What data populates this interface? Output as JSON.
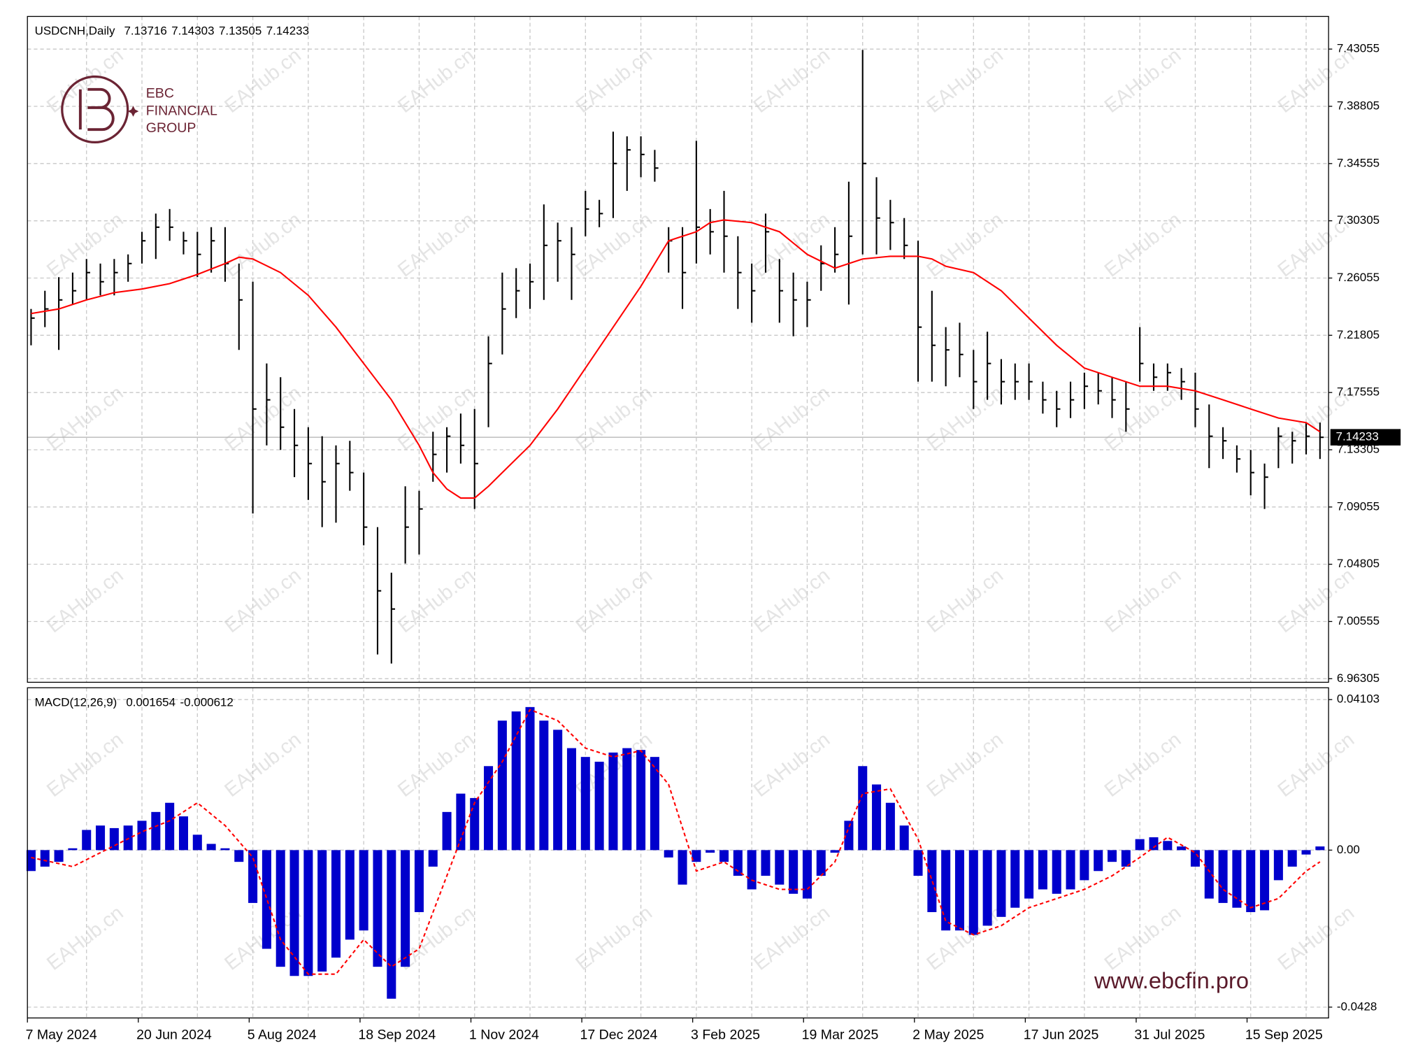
{
  "chart_data": [
    {
      "type": "ohlc",
      "title": "USDCNH,Daily",
      "header_values": [
        7.13716,
        7.14303,
        7.13505,
        7.14233
      ],
      "categories": [
        "7 May 2024",
        null,
        null,
        null,
        null,
        null,
        null,
        null,
        "20 Jun 2024",
        null,
        null,
        null,
        null,
        null,
        null,
        null,
        "5 Aug 2024",
        null,
        null,
        null,
        null,
        null,
        null,
        null,
        "18 Sep 2024",
        null,
        null,
        null,
        null,
        null,
        null,
        null,
        "1 Nov 2024",
        null,
        null,
        null,
        null,
        null,
        null,
        null,
        "17 Dec 2024",
        null,
        null,
        null,
        null,
        null,
        null,
        null,
        "3 Feb 2025",
        null,
        null,
        null,
        null,
        null,
        null,
        null,
        "19 Mar 2025",
        null,
        null,
        null,
        null,
        null,
        null,
        null,
        "2 May 2025",
        null,
        null,
        null,
        null,
        null,
        null,
        null,
        "17 Jun 2025",
        null,
        null,
        null,
        null,
        null,
        null,
        null,
        "31 Jul 2025",
        null,
        null,
        null,
        null,
        null,
        null,
        null,
        "15 Sep 2025",
        null,
        null,
        null,
        null,
        null
      ],
      "high": [
        7.2376,
        7.2511,
        7.2612,
        7.2646,
        7.2747,
        7.2713,
        7.2747,
        7.2781,
        7.2949,
        7.3084,
        7.3118,
        7.2949,
        7.2949,
        7.2983,
        7.2983,
        7.2713,
        7.2578,
        7.1971,
        7.1869,
        7.1633,
        7.1498,
        7.1431,
        7.1363,
        7.1397,
        7.1161,
        7.0756,
        7.0418,
        7.1059,
        7.1026,
        7.1464,
        7.1498,
        7.1599,
        7.1633,
        7.2173,
        7.2646,
        7.2679,
        7.2713,
        7.3152,
        7.3017,
        7.2983,
        7.3253,
        7.3186,
        7.3692,
        7.3658,
        7.3658,
        7.3557,
        7.2983,
        7.2983,
        7.3624,
        7.3118,
        7.3253,
        7.2916,
        7.2713,
        7.3084,
        7.2747,
        7.2646,
        7.2578,
        7.2848,
        7.2983,
        7.3321,
        7.4299,
        7.3354,
        7.3186,
        7.3051,
        7.2882,
        7.2511,
        7.2241,
        7.2274,
        7.2072,
        7.2207,
        7.2004,
        7.1971,
        7.1971,
        7.1836,
        7.1768,
        7.1836,
        7.1903,
        7.1903,
        7.1869,
        7.1836,
        7.2241,
        7.1971,
        7.1971,
        7.1937,
        7.1903,
        7.1667,
        7.1498,
        7.1363,
        7.1329,
        7.1228,
        7.1498,
        7.1464,
        7.1532,
        7.1532
      ],
      "low": [
        7.2106,
        7.2241,
        7.2072,
        7.2409,
        7.2443,
        7.2477,
        7.2477,
        7.2578,
        7.2713,
        7.2747,
        7.2882,
        7.2781,
        7.2612,
        7.2646,
        7.2578,
        7.2072,
        7.0857,
        7.1363,
        7.1329,
        7.1127,
        7.0958,
        7.0756,
        7.0789,
        7.1026,
        7.0621,
        6.9811,
        6.9743,
        7.0486,
        7.0553,
        7.1093,
        7.1161,
        7.1228,
        7.0891,
        7.1498,
        7.2038,
        7.2308,
        7.2376,
        7.2443,
        7.2578,
        7.2443,
        7.2916,
        7.2983,
        7.3051,
        7.3253,
        7.3354,
        7.3321,
        7.2646,
        7.2376,
        7.2713,
        7.2781,
        7.2646,
        7.2376,
        7.2274,
        7.2646,
        7.2274,
        7.2173,
        7.2241,
        7.2511,
        7.2646,
        7.2409,
        7.2781,
        7.2781,
        7.2814,
        7.2747,
        7.1836,
        7.1836,
        7.1802,
        7.1869,
        7.1633,
        7.1701,
        7.1667,
        7.1701,
        7.1701,
        7.1599,
        7.1498,
        7.1566,
        7.1633,
        7.1667,
        7.1566,
        7.1464,
        7.1836,
        7.1768,
        7.1768,
        7.1701,
        7.1498,
        7.1194,
        7.1262,
        7.1161,
        7.0992,
        7.0891,
        7.1194,
        7.1228,
        7.1296,
        7.1262
      ],
      "close": [
        7.2308,
        7.2376,
        7.2443,
        7.2511,
        7.2646,
        7.2578,
        7.2646,
        7.2713,
        7.2882,
        7.2983,
        7.2983,
        7.2882,
        7.2781,
        7.2882,
        7.2713,
        7.2443,
        7.1633,
        7.1701,
        7.1498,
        7.1363,
        7.1228,
        7.1093,
        7.1228,
        7.1161,
        7.0756,
        7.0283,
        7.0148,
        7.0756,
        7.0891,
        7.1296,
        7.1431,
        7.1363,
        7.1228,
        7.1971,
        7.2376,
        7.2511,
        7.2578,
        7.2848,
        7.2882,
        7.2781,
        7.3118,
        7.3084,
        7.3456,
        7.3557,
        7.3523,
        7.3422,
        7.2882,
        7.2646,
        7.2983,
        7.2949,
        7.2916,
        7.2646,
        7.2511,
        7.2949,
        7.2511,
        7.2443,
        7.2443,
        7.2713,
        7.2781,
        7.2916,
        7.3456,
        7.3051,
        7.3017,
        7.2848,
        7.2241,
        7.2106,
        7.2072,
        7.2038,
        7.1836,
        7.1971,
        7.1836,
        7.1836,
        7.1836,
        7.1701,
        7.1633,
        7.1701,
        7.1802,
        7.1768,
        7.1701,
        7.1633,
        7.1971,
        7.1869,
        7.1903,
        7.1836,
        7.1633,
        7.1431,
        7.1397,
        7.1262,
        7.1161,
        7.1127,
        7.1431,
        7.1397,
        7.1431,
        7.1423
      ],
      "color": "#000000",
      "ma": {
        "color": "#ff0000",
        "x": [
          0,
          2,
          4,
          6,
          8,
          10,
          12,
          14,
          15,
          16,
          18,
          20,
          22,
          24,
          26,
          28,
          29,
          30,
          31,
          32,
          33,
          34,
          36,
          38,
          40,
          42,
          44,
          46,
          47,
          48,
          49,
          50,
          52,
          54,
          56,
          58,
          60,
          62,
          64,
          65,
          66,
          68,
          70,
          72,
          74,
          76,
          78,
          80,
          82,
          84,
          86,
          88,
          90,
          92,
          93
        ],
        "values": [
          7.2342,
          7.2376,
          7.2443,
          7.2497,
          7.2524,
          7.2564,
          7.2632,
          7.2713,
          7.276,
          7.2747,
          7.2646,
          7.2477,
          7.2241,
          7.1971,
          7.1701,
          7.1363,
          7.1161,
          7.1039,
          7.0972,
          7.0972,
          7.1059,
          7.1161,
          7.1363,
          7.1633,
          7.1937,
          7.2241,
          7.2544,
          7.2882,
          7.2916,
          7.2949,
          7.3017,
          7.3037,
          7.3017,
          7.2949,
          7.2781,
          7.2679,
          7.2747,
          7.2767,
          7.2767,
          7.2747,
          7.2693,
          7.2646,
          7.2511,
          7.2308,
          7.2106,
          7.1937,
          7.1869,
          7.1802,
          7.1802,
          7.1768,
          7.1701,
          7.1633,
          7.1566,
          7.1532,
          7.1464
        ]
      },
      "ylim": [
        6.9604,
        7.4548
      ],
      "yticks": [
        7.43055,
        7.38805,
        7.34555,
        7.30305,
        7.26055,
        7.21805,
        7.17555,
        7.13305,
        7.09055,
        7.04805,
        7.00555,
        6.96305
      ],
      "grid": true
    },
    {
      "type": "macd",
      "title": "MACD(12,26,9)",
      "header_values": [
        0.001654,
        -0.000612
      ],
      "histogram": {
        "color": "#0000cc",
        "values": [
          -0.0057,
          -0.0045,
          -0.0032,
          0.0005,
          0.0055,
          0.0067,
          0.006,
          0.0067,
          0.008,
          0.0104,
          0.0129,
          0.0092,
          0.0042,
          0.0017,
          0.0005,
          -0.0032,
          -0.0144,
          -0.0269,
          -0.0318,
          -0.0343,
          -0.0343,
          -0.0331,
          -0.0293,
          -0.0244,
          -0.0219,
          -0.0318,
          -0.0405,
          -0.0318,
          -0.0169,
          -0.0045,
          0.0104,
          0.0154,
          0.0142,
          0.0229,
          0.0353,
          0.0378,
          0.039,
          0.0353,
          0.0328,
          0.0278,
          0.0254,
          0.0241,
          0.0266,
          0.0278,
          0.0273,
          0.0254,
          -0.002,
          -0.0094,
          -0.0032,
          -0.0007,
          -0.0032,
          -0.007,
          -0.0107,
          -0.007,
          -0.0094,
          -0.0119,
          -0.0132,
          -0.007,
          -0.0007,
          0.008,
          0.0229,
          0.0179,
          0.0129,
          0.0067,
          -0.007,
          -0.0169,
          -0.0219,
          -0.0219,
          -0.0231,
          -0.0206,
          -0.0182,
          -0.0157,
          -0.0132,
          -0.0107,
          -0.0119,
          -0.0107,
          -0.0082,
          -0.0057,
          -0.0032,
          -0.0045,
          0.003,
          0.0035,
          0.0025,
          0.001,
          -0.0045,
          -0.0132,
          -0.0144,
          -0.0157,
          -0.0169,
          -0.0164,
          -0.0082,
          -0.0045,
          -0.0012,
          0.001
        ]
      },
      "signal": {
        "color": "#ff0000",
        "x": [
          0,
          3,
          5,
          8,
          10,
          12,
          14,
          16,
          18,
          20,
          22,
          24,
          26,
          28,
          30,
          32,
          34,
          36,
          38,
          40,
          42,
          44,
          46,
          48,
          50,
          52,
          54,
          56,
          58,
          60,
          62,
          64,
          66,
          68,
          70,
          72,
          74,
          76,
          78,
          80,
          82,
          84,
          86,
          88,
          90,
          92,
          93
        ],
        "values": [
          -0.002,
          -0.0045,
          -0.0007,
          0.005,
          0.008,
          0.0129,
          0.0067,
          -0.002,
          -0.0244,
          -0.0338,
          -0.0338,
          -0.0244,
          -0.0318,
          -0.0269,
          -0.007,
          0.0129,
          0.0241,
          0.0383,
          0.0353,
          0.0278,
          0.0254,
          0.0271,
          0.0179,
          -0.0057,
          -0.0032,
          -0.0082,
          -0.0107,
          -0.0107,
          -0.0032,
          0.0154,
          0.0167,
          0.003,
          -0.0194,
          -0.0231,
          -0.0206,
          -0.0157,
          -0.0132,
          -0.0107,
          -0.007,
          -0.002,
          0.0035,
          -0.0007,
          -0.0107,
          -0.0157,
          -0.0132,
          -0.0057,
          -0.0032
        ]
      },
      "ylim": [
        -0.04575,
        0.04426
      ],
      "yticks": [
        0.04103,
        {
          "value": 0,
          "label": "0.00"
        },
        -0.0428
      ],
      "grid": true
    }
  ],
  "logo": {
    "name": "EBC",
    "lines": [
      "FINANCIAL",
      "GROUP"
    ]
  },
  "website": "www.ebcfin.pro",
  "watermark": "EAHub.cn"
}
